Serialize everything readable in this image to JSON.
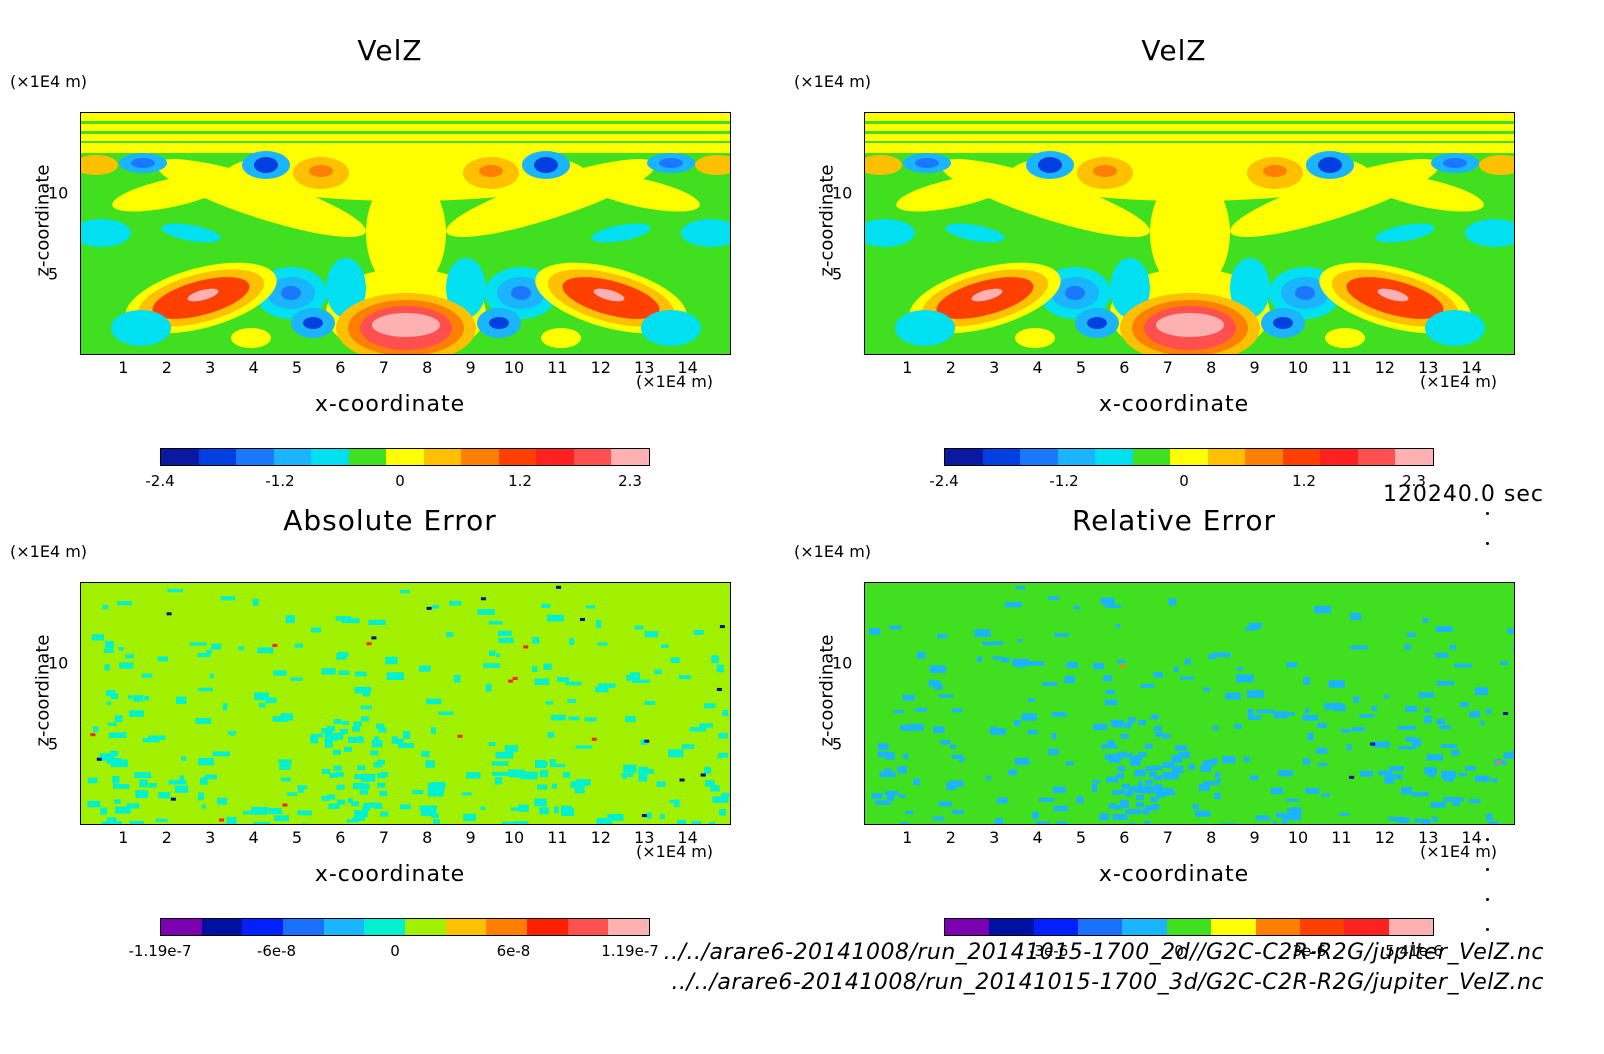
{
  "figure": {
    "time_label": "120240.0 sec",
    "file_paths": [
      "../../arare6-20141008/run_20141015-1700_2d//G2C-C2R-R2G/jupiter_VelZ.nc",
      "../../arare6-20141008/run_20141015-1700_3d/G2C-C2R-R2G/jupiter_VelZ.nc"
    ]
  },
  "chart_data": [
    {
      "type": "heatmap",
      "title": "VelZ",
      "xlabel": "x-coordinate",
      "ylabel": "z-coordinate",
      "x_unit": "(×1E4 m)",
      "y_unit": "(×1E4 m)",
      "xlim": [
        0,
        15
      ],
      "ylim": [
        0,
        15
      ],
      "x_ticks": [
        "1",
        "2",
        "3",
        "4",
        "5",
        "6",
        "7",
        "8",
        "9",
        "10",
        "11",
        "12",
        "13",
        "14"
      ],
      "y_ticks": [
        "5",
        "10"
      ],
      "colorbar": {
        "colors": [
          "#0a1aa0",
          "#0040e0",
          "#1a78ff",
          "#1ab4ff",
          "#00e0f0",
          "#40e020",
          "#ffff00",
          "#ffc000",
          "#ff8000",
          "#ff4000",
          "#ff2020",
          "#ff5050",
          "#ffb0b0"
        ],
        "labels": [
          "-2.4",
          "-1.2",
          "0",
          "1.2",
          "2.3"
        ],
        "range": [
          -2.4,
          2.3
        ]
      }
    },
    {
      "type": "heatmap",
      "title": "VelZ",
      "xlabel": "x-coordinate",
      "ylabel": "z-coordinate",
      "x_unit": "(×1E4 m)",
      "y_unit": "(×1E4 m)",
      "xlim": [
        0,
        15
      ],
      "ylim": [
        0,
        15
      ],
      "x_ticks": [
        "1",
        "2",
        "3",
        "4",
        "5",
        "6",
        "7",
        "8",
        "9",
        "10",
        "11",
        "12",
        "13",
        "14"
      ],
      "y_ticks": [
        "5",
        "10"
      ],
      "colorbar": {
        "colors": [
          "#0a1aa0",
          "#0040e0",
          "#1a78ff",
          "#1ab4ff",
          "#00e0f0",
          "#40e020",
          "#ffff00",
          "#ffc000",
          "#ff8000",
          "#ff4000",
          "#ff2020",
          "#ff5050",
          "#ffb0b0"
        ],
        "labels": [
          "-2.4",
          "-1.2",
          "0",
          "1.2",
          "2.3"
        ],
        "range": [
          -2.4,
          2.3
        ]
      }
    },
    {
      "type": "heatmap",
      "title": "Absolute Error",
      "xlabel": "x-coordinate",
      "ylabel": "z-coordinate",
      "x_unit": "(×1E4 m)",
      "y_unit": "(×1E4 m)",
      "xlim": [
        0,
        15
      ],
      "ylim": [
        0,
        15
      ],
      "x_ticks": [
        "1",
        "2",
        "3",
        "4",
        "5",
        "6",
        "7",
        "8",
        "9",
        "10",
        "11",
        "12",
        "13",
        "14"
      ],
      "y_ticks": [
        "5",
        "10"
      ],
      "colorbar": {
        "colors": [
          "#7a00b0",
          "#0010a0",
          "#0020ff",
          "#1a70ff",
          "#1ab4ff",
          "#00f0d0",
          "#a0f000",
          "#ffc000",
          "#ff8000",
          "#ff2000",
          "#ff5050",
          "#ffb0b0"
        ],
        "labels": [
          "-1.19e-7",
          "-6e-8",
          "0",
          "6e-8",
          "1.19e-7"
        ],
        "range": [
          -1.19e-07,
          1.19e-07
        ]
      }
    },
    {
      "type": "heatmap",
      "title": "Relative Error",
      "xlabel": "x-coordinate",
      "ylabel": "z-coordinate",
      "x_unit": "(×1E4 m)",
      "y_unit": "(×1E4 m)",
      "xlim": [
        0,
        15
      ],
      "ylim": [
        0,
        15
      ],
      "x_ticks": [
        "1",
        "2",
        "3",
        "4",
        "5",
        "6",
        "7",
        "8",
        "9",
        "10",
        "11",
        "12",
        "13",
        "14"
      ],
      "y_ticks": [
        "5",
        "10"
      ],
      "colorbar": {
        "colors": [
          "#7a00b0",
          "#0010a0",
          "#0020ff",
          "#1a70ff",
          "#1ab4ff",
          "#40e020",
          "#ffff00",
          "#ff8000",
          "#ff4000",
          "#ff2020",
          "#ffb0b0"
        ],
        "labels": [
          "-3e-6",
          "0",
          "3e-6",
          "5.41e-6"
        ],
        "range": [
          -5.41e-06,
          5.41e-06
        ]
      }
    }
  ]
}
